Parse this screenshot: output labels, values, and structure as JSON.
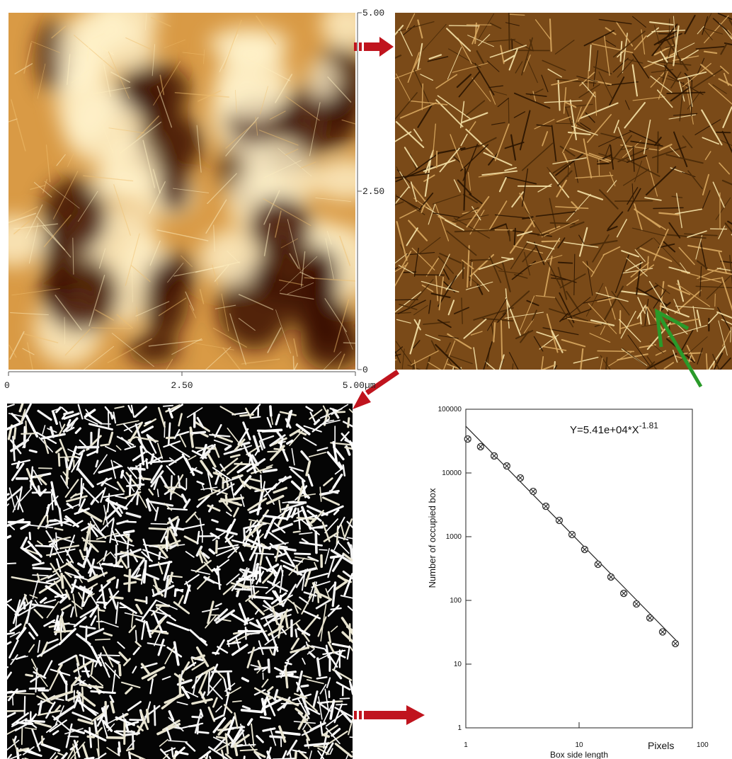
{
  "chart_data": [
    {
      "type": "image",
      "xlim": [
        0,
        5
      ],
      "xticks": [
        0,
        {
          "value": 2.5,
          "label": "2.50"
        },
        {
          "value": 5,
          "label": "5.00"
        }
      ],
      "ylim": [
        0,
        5
      ],
      "yticks": [
        0,
        {
          "value": 2.5,
          "label": "2.50"
        },
        {
          "value": 5,
          "label": "5.00"
        }
      ],
      "unit": "µm"
    },
    {
      "type": "scatter",
      "log_x": true,
      "log_y": true,
      "xlabel": "Box side length",
      "xunit": "Pixels",
      "ylabel": "Number of occupied box",
      "annotation": "Y=5.41e+04*X",
      "annotation_exponent": "-1.81",
      "fit": {
        "coefficient": 54100,
        "exponent": -1.81
      },
      "xlim": [
        1,
        100
      ],
      "xticks": [
        1,
        10,
        100
      ],
      "ylim": [
        1,
        100000
      ],
      "yticks": [
        1,
        10,
        100,
        1000,
        10000,
        100000
      ],
      "color": "#333333",
      "x": [
        1.04,
        1.35,
        1.78,
        2.3,
        3.03,
        3.93,
        5.09,
        6.68,
        8.66,
        11.2,
        14.7,
        19.1,
        24.8,
        32.1,
        42.2,
        54.6,
        70.8
      ],
      "values": [
        34100,
        25800,
        18500,
        12900,
        8360,
        5140,
        3000,
        1800,
        1080,
        630,
        369,
        233,
        129,
        88,
        53,
        32,
        21
      ]
    }
  ]
}
